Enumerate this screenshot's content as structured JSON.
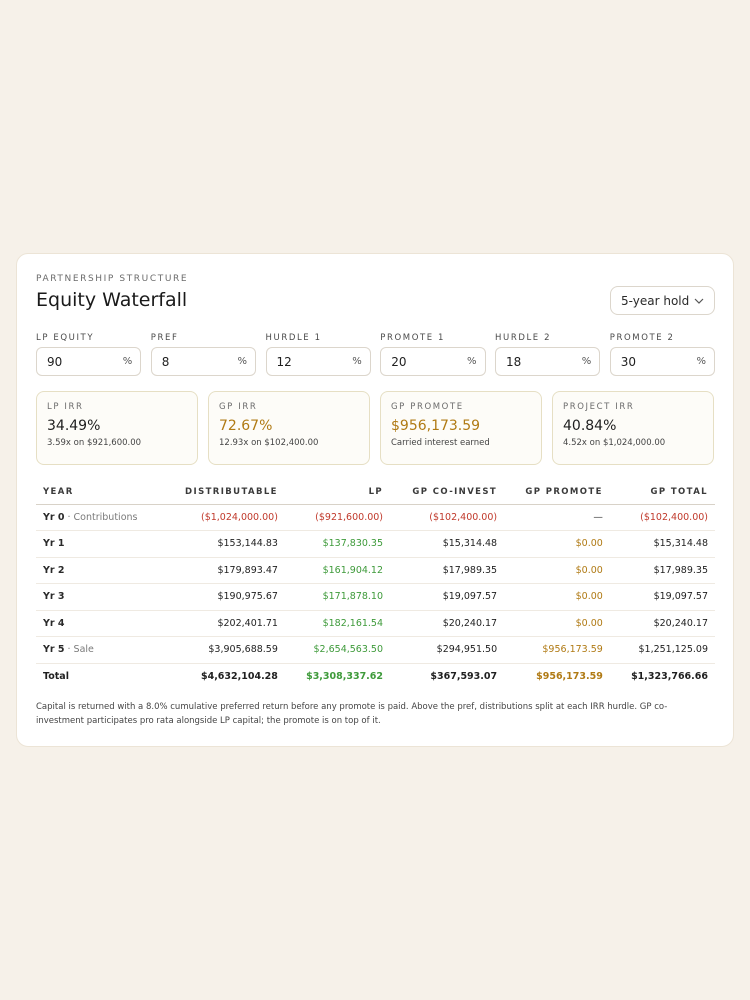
{
  "header": {
    "eyebrow": "PARTNERSHIP STRUCTURE",
    "title": "Equity Waterfall",
    "hold_select": "5-year hold"
  },
  "inputs": [
    {
      "label": "LP EQUITY",
      "value": "90",
      "unit": "%"
    },
    {
      "label": "PREF",
      "value": "8",
      "unit": "%"
    },
    {
      "label": "HURDLE 1",
      "value": "12",
      "unit": "%"
    },
    {
      "label": "PROMOTE 1",
      "value": "20",
      "unit": "%"
    },
    {
      "label": "HURDLE 2",
      "value": "18",
      "unit": "%"
    },
    {
      "label": "PROMOTE 2",
      "value": "30",
      "unit": "%"
    }
  ],
  "metrics": [
    {
      "label": "LP IRR",
      "value": "34.49%",
      "sub": "3.59x on $921,600.00"
    },
    {
      "label": "GP IRR",
      "value": "72.67%",
      "sub": "12.93x on $102,400.00"
    },
    {
      "label": "GP PROMOTE",
      "value": "$956,173.59",
      "sub": "Carried interest earned"
    },
    {
      "label": "PROJECT IRR",
      "value": "40.84%",
      "sub": "4.52x on $1,024,000.00"
    }
  ],
  "table": {
    "headers": [
      "YEAR",
      "DISTRIBUTABLE",
      "LP",
      "GP CO-INVEST",
      "GP PROMOTE",
      "GP TOTAL"
    ],
    "rows": [
      {
        "year": "Yr 0",
        "note": " · Contributions",
        "distributable": "($1,024,000.00)",
        "lp": "($921,600.00)",
        "gp_coinvest": "($102,400.00)",
        "gp_promote": "—",
        "gp_total": "($102,400.00)"
      },
      {
        "year": "Yr 1",
        "note": "",
        "distributable": "$153,144.83",
        "lp": "$137,830.35",
        "gp_coinvest": "$15,314.48",
        "gp_promote": "$0.00",
        "gp_total": "$15,314.48"
      },
      {
        "year": "Yr 2",
        "note": "",
        "distributable": "$179,893.47",
        "lp": "$161,904.12",
        "gp_coinvest": "$17,989.35",
        "gp_promote": "$0.00",
        "gp_total": "$17,989.35"
      },
      {
        "year": "Yr 3",
        "note": "",
        "distributable": "$190,975.67",
        "lp": "$171,878.10",
        "gp_coinvest": "$19,097.57",
        "gp_promote": "$0.00",
        "gp_total": "$19,097.57"
      },
      {
        "year": "Yr 4",
        "note": "",
        "distributable": "$202,401.71",
        "lp": "$182,161.54",
        "gp_coinvest": "$20,240.17",
        "gp_promote": "$0.00",
        "gp_total": "$20,240.17"
      },
      {
        "year": "Yr 5",
        "note": " · Sale",
        "distributable": "$3,905,688.59",
        "lp": "$2,654,563.50",
        "gp_coinvest": "$294,951.50",
        "gp_promote": "$956,173.59",
        "gp_total": "$1,251,125.09"
      }
    ],
    "total": {
      "year": "Total",
      "distributable": "$4,632,104.28",
      "lp": "$3,308,337.62",
      "gp_coinvest": "$367,593.07",
      "gp_promote": "$956,173.59",
      "gp_total": "$1,323,766.66"
    }
  },
  "footnote": "Capital is returned with a 8.0% cumulative preferred return before any promote is paid. Above the pref, distributions split at each IRR hurdle. GP co-investment participates pro rata alongside LP capital; the promote is on top of it.",
  "colors": {
    "background": "#f6f1e9",
    "negative": "#c0392b",
    "lp_positive": "#3e9a3a",
    "promote_gold": "#b07a14"
  }
}
